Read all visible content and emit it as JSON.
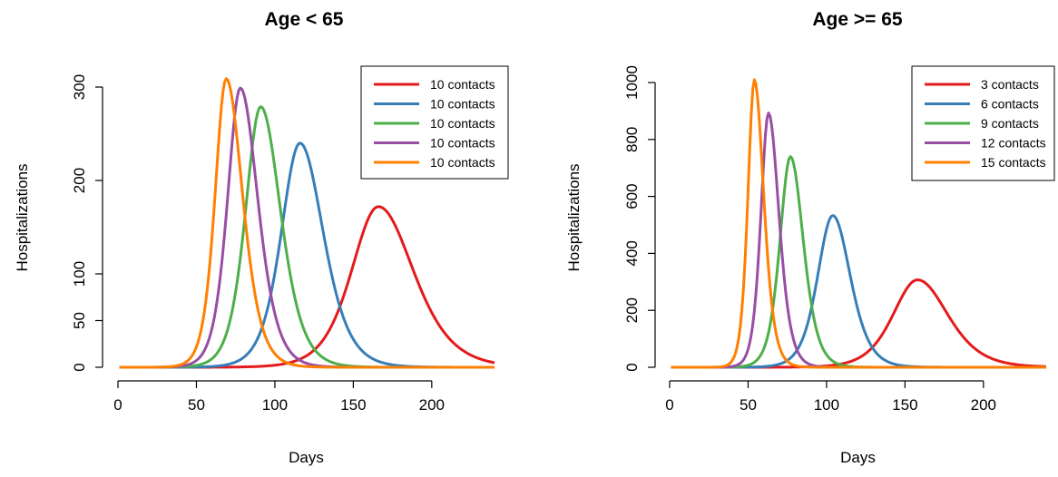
{
  "chart_data": [
    {
      "type": "line",
      "title": "Age < 65",
      "xlabel": "Days",
      "ylabel": "Hospitalizations",
      "xlim": [
        0,
        240
      ],
      "ylim": [
        0,
        310
      ],
      "x_ticks": [
        0,
        50,
        100,
        150,
        200
      ],
      "y_ticks": [
        0,
        50,
        100,
        200,
        300
      ],
      "legend_position": "top-right",
      "grid": false,
      "series": [
        {
          "name": "10 contacts",
          "color": "#e41a1c",
          "peak_day": 166,
          "peak_value": 172,
          "width_left": 23,
          "width_right": 30
        },
        {
          "name": "10 contacts",
          "color": "#377eb8",
          "peak_day": 116,
          "peak_value": 240,
          "width_left": 16,
          "width_right": 20
        },
        {
          "name": "10 contacts",
          "color": "#4daf4a",
          "peak_day": 91,
          "peak_value": 279,
          "width_left": 13,
          "width_right": 17
        },
        {
          "name": "10 contacts",
          "color": "#984ea3",
          "peak_day": 78,
          "peak_value": 299,
          "width_left": 11,
          "width_right": 15
        },
        {
          "name": "10 contacts",
          "color": "#ff7f00",
          "peak_day": 69,
          "peak_value": 309,
          "width_left": 9.5,
          "width_right": 14
        }
      ]
    },
    {
      "type": "line",
      "title": "Age >= 65",
      "xlabel": "Days",
      "ylabel": "Hospitalizations",
      "xlim": [
        0,
        240
      ],
      "ylim": [
        0,
        1010
      ],
      "x_ticks": [
        0,
        50,
        100,
        150,
        200
      ],
      "y_ticks": [
        0,
        200,
        400,
        600,
        800,
        1000
      ],
      "legend_position": "top-right",
      "grid": false,
      "series": [
        {
          "name": "3 contacts",
          "color": "#e41a1c",
          "peak_day": 158,
          "peak_value": 307,
          "width_left": 21,
          "width_right": 26
        },
        {
          "name": "6 contacts",
          "color": "#377eb8",
          "peak_day": 104,
          "peak_value": 533,
          "width_left": 13,
          "width_right": 15
        },
        {
          "name": "9 contacts",
          "color": "#4daf4a",
          "peak_day": 77,
          "peak_value": 740,
          "width_left": 9,
          "width_right": 11
        },
        {
          "name": "12 contacts",
          "color": "#984ea3",
          "peak_day": 63,
          "peak_value": 893,
          "width_left": 6.5,
          "width_right": 9
        },
        {
          "name": "15 contacts",
          "color": "#ff7f00",
          "peak_day": 54,
          "peak_value": 1010,
          "width_left": 5.5,
          "width_right": 8
        }
      ]
    }
  ]
}
